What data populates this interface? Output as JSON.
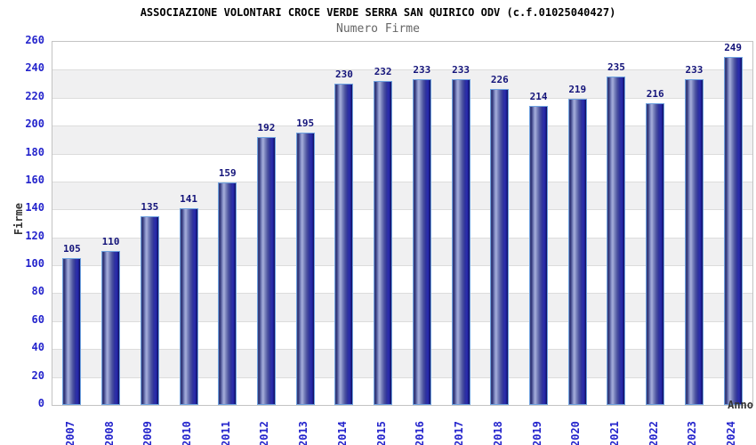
{
  "chart_data": {
    "type": "bar",
    "title": "ASSOCIAZIONE VOLONTARI CROCE VERDE SERRA SAN QUIRICO ODV (c.f.01025040427)",
    "subtitle": "Numero Firme",
    "xlabel": "Anno",
    "ylabel": "Firme",
    "categories": [
      "2007",
      "2008",
      "2009",
      "2010",
      "2011",
      "2012",
      "2013",
      "2014",
      "2015",
      "2016",
      "2017",
      "2018",
      "2019",
      "2020",
      "2021",
      "2022",
      "2023",
      "2024"
    ],
    "values": [
      105,
      110,
      135,
      141,
      159,
      192,
      195,
      230,
      232,
      233,
      233,
      226,
      214,
      219,
      235,
      216,
      233,
      249
    ],
    "ylim": [
      0,
      260
    ],
    "ytick_step": 20,
    "ytick_labels": [
      "0",
      "20",
      "40",
      "60",
      "80",
      "100",
      "120",
      "140",
      "160",
      "180",
      "200",
      "220",
      "240",
      "260"
    ],
    "grid": true,
    "legend_position": "none",
    "colors": {
      "background": "#ffffff",
      "title": "#000000",
      "subtitle": "#666666",
      "tick_label": "#2424cc",
      "value_label": "#14147a",
      "axis_label": "#333333",
      "bar_outline": "#6fa2e0",
      "bar_dark": "#2e3377",
      "bar_light": "#a6aedb",
      "bar_deep": "#10104f",
      "stripe": "#f0f0f1",
      "gridline": "#dcdcdc",
      "frame": "#c3c3c3"
    }
  }
}
